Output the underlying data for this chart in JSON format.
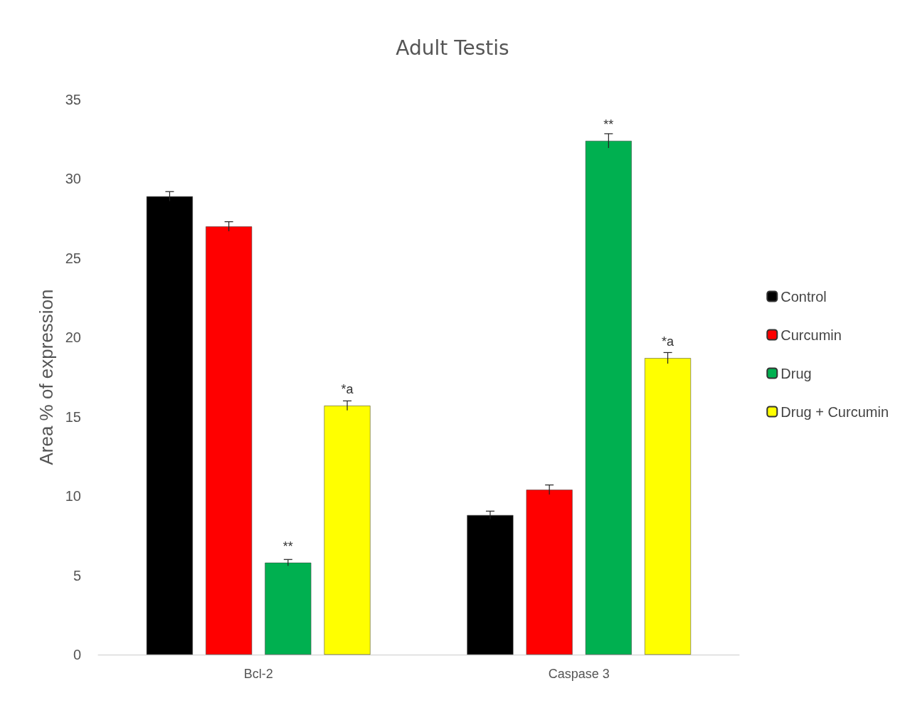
{
  "chart_data": {
    "type": "bar",
    "title": "Adult Testis",
    "ylabel": "Area % of expression",
    "categories": [
      "Bcl-2",
      "Caspase 3"
    ],
    "series": [
      {
        "name": "Control",
        "color": "#000000",
        "values": [
          28.9,
          8.8
        ],
        "errors": [
          0.3,
          0.25
        ]
      },
      {
        "name": "Curcumin",
        "color": "#ff0000",
        "values": [
          27.0,
          10.4
        ],
        "errors": [
          0.3,
          0.3
        ]
      },
      {
        "name": "Drug",
        "color": "#00b050",
        "values": [
          5.8,
          32.4
        ],
        "errors": [
          0.2,
          0.45
        ],
        "value_labels": [
          "**",
          "**"
        ]
      },
      {
        "name": "Drug + Curcumin",
        "color": "#ffff00",
        "values": [
          15.7,
          18.7
        ],
        "errors": [
          0.3,
          0.35
        ],
        "value_labels": [
          "*a",
          "*a"
        ]
      }
    ],
    "ylim": [
      0,
      35
    ],
    "yticks": [
      0,
      5,
      10,
      15,
      20,
      25,
      30,
      35
    ],
    "grid": false,
    "legend": "right"
  }
}
